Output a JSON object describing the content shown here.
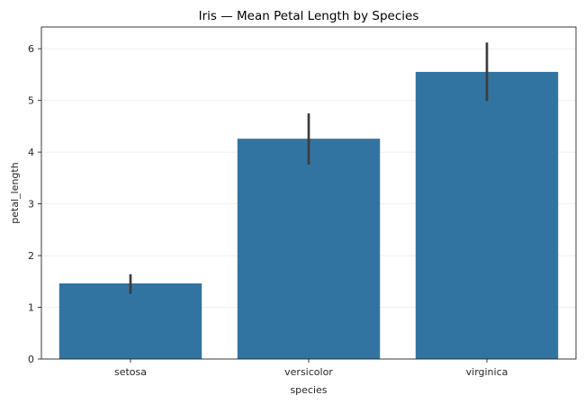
{
  "chart_data": {
    "type": "bar",
    "title": "Iris — Mean Petal Length by Species",
    "xlabel": "species",
    "ylabel": "petal_length",
    "categories": [
      "setosa",
      "versicolor",
      "virginica"
    ],
    "values": [
      1.462,
      4.26,
      5.552
    ],
    "error_bars": [
      {
        "low": 1.26,
        "high": 1.64
      },
      {
        "low": 3.76,
        "high": 4.75
      },
      {
        "low": 4.99,
        "high": 6.12
      }
    ],
    "ylim": [
      0,
      6.42
    ],
    "yticks": [
      0,
      1,
      2,
      3,
      4,
      5,
      6
    ],
    "grid": true,
    "bar_color": "#3274a1",
    "error_color": "#3c3c3c",
    "grid_color": "#ebebeb"
  }
}
